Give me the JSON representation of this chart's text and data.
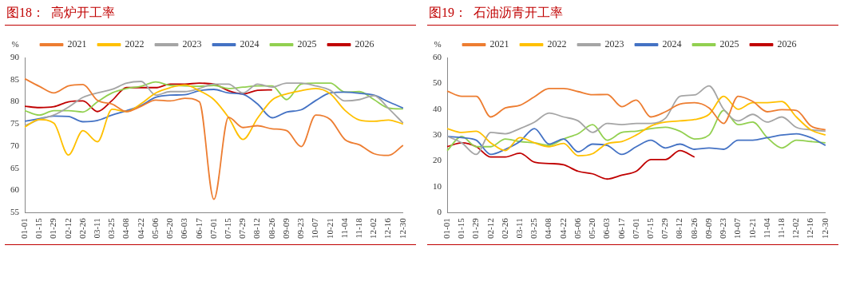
{
  "chart_data": [
    {
      "type": "line",
      "title": "图18：  高炉开工率",
      "ylabel": "%",
      "categories": [
        "01-01",
        "01-15",
        "01-29",
        "02-12",
        "02-26",
        "03-11",
        "03-25",
        "04-08",
        "04-22",
        "05-06",
        "05-20",
        "06-03",
        "06-17",
        "07-01",
        "07-15",
        "07-29",
        "08-12",
        "08-26",
        "09-09",
        "09-23",
        "10-07",
        "10-21",
        "11-04",
        "11-18",
        "12-02",
        "12-16",
        "12-30"
      ],
      "ylim": [
        55,
        90
      ],
      "yticks": [
        55,
        60,
        65,
        70,
        75,
        80,
        85,
        90
      ],
      "grid": false,
      "legend": "top",
      "marker": "none",
      "line_style": "solid",
      "series": [
        {
          "name": "2021",
          "color": "#ed7d31",
          "values": [
            85.2,
            83.5,
            82.0,
            83.6,
            83.9,
            80.3,
            79.5,
            77.8,
            79.0,
            80.4,
            80.2,
            80.8,
            80.0,
            58.0,
            76.5,
            74.2,
            74.6,
            73.9,
            73.5,
            69.9,
            77.0,
            76.0,
            71.5,
            70.3,
            68.3,
            67.9,
            70.2
          ]
        },
        {
          "name": "2022",
          "color": "#ffc000",
          "values": [
            74.3,
            76.0,
            75.2,
            68.0,
            73.5,
            71.0,
            78.3,
            77.8,
            79.6,
            82.0,
            83.2,
            83.8,
            82.5,
            80.5,
            76.5,
            71.5,
            76.3,
            80.4,
            81.8,
            82.5,
            83.0,
            81.8,
            78.1,
            75.9,
            75.6,
            75.9,
            75.0
          ]
        },
        {
          "name": "2023",
          "color": "#a5a5a5",
          "values": [
            74.6,
            76.0,
            77.0,
            78.8,
            81.0,
            82.0,
            82.8,
            84.2,
            84.6,
            81.5,
            82.3,
            82.3,
            83.0,
            84.0,
            84.0,
            82.0,
            84.0,
            83.3,
            84.2,
            84.2,
            83.6,
            82.6,
            80.2,
            80.5,
            81.4,
            78.5,
            75.2
          ]
        },
        {
          "name": "2024",
          "color": "#4472c4",
          "values": [
            75.6,
            76.2,
            76.8,
            76.7,
            75.5,
            75.8,
            77.0,
            78.0,
            79.2,
            81.0,
            81.5,
            81.6,
            82.5,
            82.8,
            82.0,
            81.7,
            79.5,
            76.4,
            77.7,
            78.2,
            80.3,
            82.0,
            82.2,
            81.9,
            81.5,
            80.0,
            78.6
          ]
        },
        {
          "name": "2025",
          "color": "#92d050",
          "values": [
            78.0,
            77.0,
            78.0,
            78.0,
            77.7,
            80.0,
            82.0,
            83.0,
            83.5,
            84.5,
            83.7,
            83.6,
            83.5,
            83.7,
            83.0,
            83.3,
            83.6,
            83.6,
            80.5,
            84.0,
            84.2,
            84.2,
            82.2,
            82.3,
            80.5,
            78.6,
            78.4
          ]
        },
        {
          "name": "2026",
          "color": "#c00000",
          "values": [
            79.0,
            78.7,
            78.9,
            80.0,
            80.2,
            77.8,
            80.3,
            83.2,
            83.2,
            83.2,
            84.0,
            84.0,
            84.2,
            84.0,
            82.5,
            81.8,
            82.6,
            82.7,
            null,
            null,
            null,
            null,
            null,
            null,
            null,
            null,
            null
          ]
        }
      ]
    },
    {
      "type": "line",
      "title": "图19：  石油沥青开工率",
      "ylabel": "%",
      "categories": [
        "01-01",
        "01-15",
        "01-29",
        "02-12",
        "02-26",
        "03-11",
        "03-25",
        "04-08",
        "04-22",
        "05-06",
        "05-20",
        "06-03",
        "06-17",
        "07-01",
        "07-15",
        "07-29",
        "08-12",
        "08-26",
        "09-09",
        "09-23",
        "10-07",
        "10-21",
        "11-04",
        "11-18",
        "12-02",
        "12-16",
        "12-30"
      ],
      "ylim": [
        0,
        60
      ],
      "yticks": [
        0,
        10,
        20,
        30,
        40,
        50,
        60
      ],
      "grid": false,
      "legend": "top",
      "marker": "none",
      "line_style": "solid",
      "series": [
        {
          "name": "2021",
          "color": "#ed7d31",
          "values": [
            47.0,
            45.0,
            45.0,
            37.0,
            40.5,
            41.5,
            44.8,
            48.0,
            48.0,
            46.8,
            45.6,
            45.7,
            41.0,
            43.5,
            37.0,
            39.0,
            42.0,
            42.5,
            40.5,
            34.5,
            45.0,
            43.0,
            39.0,
            39.8,
            39.5,
            33.5,
            32.0
          ]
        },
        {
          "name": "2022",
          "color": "#ffc000",
          "values": [
            32.5,
            31.0,
            31.5,
            27.0,
            24.0,
            29.0,
            27.0,
            25.5,
            26.8,
            22.0,
            22.8,
            26.7,
            27.5,
            30.0,
            33.5,
            35.0,
            35.5,
            36.0,
            38.0,
            45.0,
            40.0,
            42.5,
            42.5,
            43.0,
            37.0,
            32.0,
            30.0
          ]
        },
        {
          "name": "2023",
          "color": "#a5a5a5",
          "values": [
            29.5,
            27.0,
            22.5,
            31.0,
            30.5,
            32.5,
            35.0,
            38.5,
            37.0,
            35.5,
            31.0,
            34.5,
            34.0,
            34.5,
            34.5,
            36.5,
            45.0,
            45.5,
            49.0,
            40.0,
            35.5,
            38.0,
            35.0,
            37.0,
            33.0,
            32.0,
            31.5
          ]
        },
        {
          "name": "2024",
          "color": "#4472c4",
          "values": [
            29.5,
            29.0,
            28.0,
            22.5,
            24.5,
            27.5,
            32.5,
            26.5,
            28.5,
            23.5,
            26.5,
            26.0,
            22.5,
            25.5,
            28.0,
            25.0,
            26.5,
            24.5,
            25.0,
            24.5,
            28.0,
            28.0,
            29.0,
            30.0,
            30.5,
            29.0,
            26.0
          ]
        },
        {
          "name": "2025",
          "color": "#92d050",
          "values": [
            24.0,
            29.5,
            25.5,
            25.5,
            28.5,
            27.5,
            27.0,
            26.0,
            28.5,
            30.5,
            34.0,
            28.0,
            31.0,
            31.5,
            32.5,
            33.0,
            31.5,
            28.5,
            30.0,
            39.5,
            34.0,
            35.0,
            29.0,
            25.0,
            28.0,
            27.5,
            27.0
          ]
        },
        {
          "name": "2026",
          "color": "#c00000",
          "values": [
            25.5,
            27.0,
            25.5,
            21.5,
            21.5,
            23.0,
            19.5,
            19.0,
            18.5,
            16.0,
            15.0,
            13.0,
            14.5,
            16.0,
            20.5,
            20.5,
            24.0,
            21.5,
            null,
            null,
            null,
            null,
            null,
            null,
            null,
            null,
            null
          ]
        }
      ]
    }
  ]
}
